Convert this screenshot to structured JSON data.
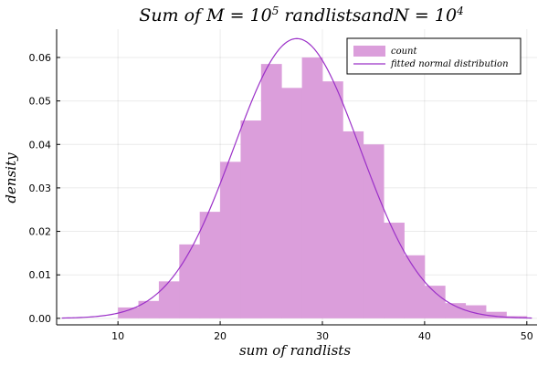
{
  "chart_data": {
    "type": "bar",
    "subtype": "histogram",
    "title": "Sum of M = 10^5 randlistsandN = 10^4",
    "title_parts": {
      "pre": "Sum of M = 10",
      "exp1": "5",
      "mid": " randlistsandN = 10",
      "exp2": "4"
    },
    "xlabel": "sum of randlists",
    "ylabel": "density",
    "xlim": [
      4,
      51
    ],
    "ylim": [
      -0.0015,
      0.0665
    ],
    "xticks": [
      10,
      20,
      30,
      40,
      50
    ],
    "yticks": [
      0.0,
      0.01,
      0.02,
      0.03,
      0.04,
      0.05,
      0.06
    ],
    "ytick_labels": [
      "0.00",
      "0.01",
      "0.02",
      "0.03",
      "0.04",
      "0.05",
      "0.06"
    ],
    "grid": true,
    "legend_position": "top-right",
    "series": [
      {
        "name": "count",
        "kind": "histogram",
        "color": "#DB9EDB",
        "bin_edges": [
          10,
          12,
          14,
          16,
          18,
          20,
          22,
          24,
          26,
          28,
          30,
          32,
          34,
          36,
          38,
          40,
          42,
          44,
          46,
          48,
          50
        ],
        "values": [
          0.0025,
          0.004,
          0.0085,
          0.017,
          0.0245,
          0.036,
          0.0455,
          0.0585,
          0.053,
          0.06,
          0.0545,
          0.043,
          0.04,
          0.022,
          0.0145,
          0.0075,
          0.0035,
          0.003,
          0.0015,
          0.0005
        ]
      },
      {
        "name": "fitted normal distribution",
        "kind": "line",
        "color": "#9B30C8",
        "mean": 27.5,
        "std": 6.2,
        "x_range": [
          4.5,
          50.5
        ]
      }
    ]
  }
}
